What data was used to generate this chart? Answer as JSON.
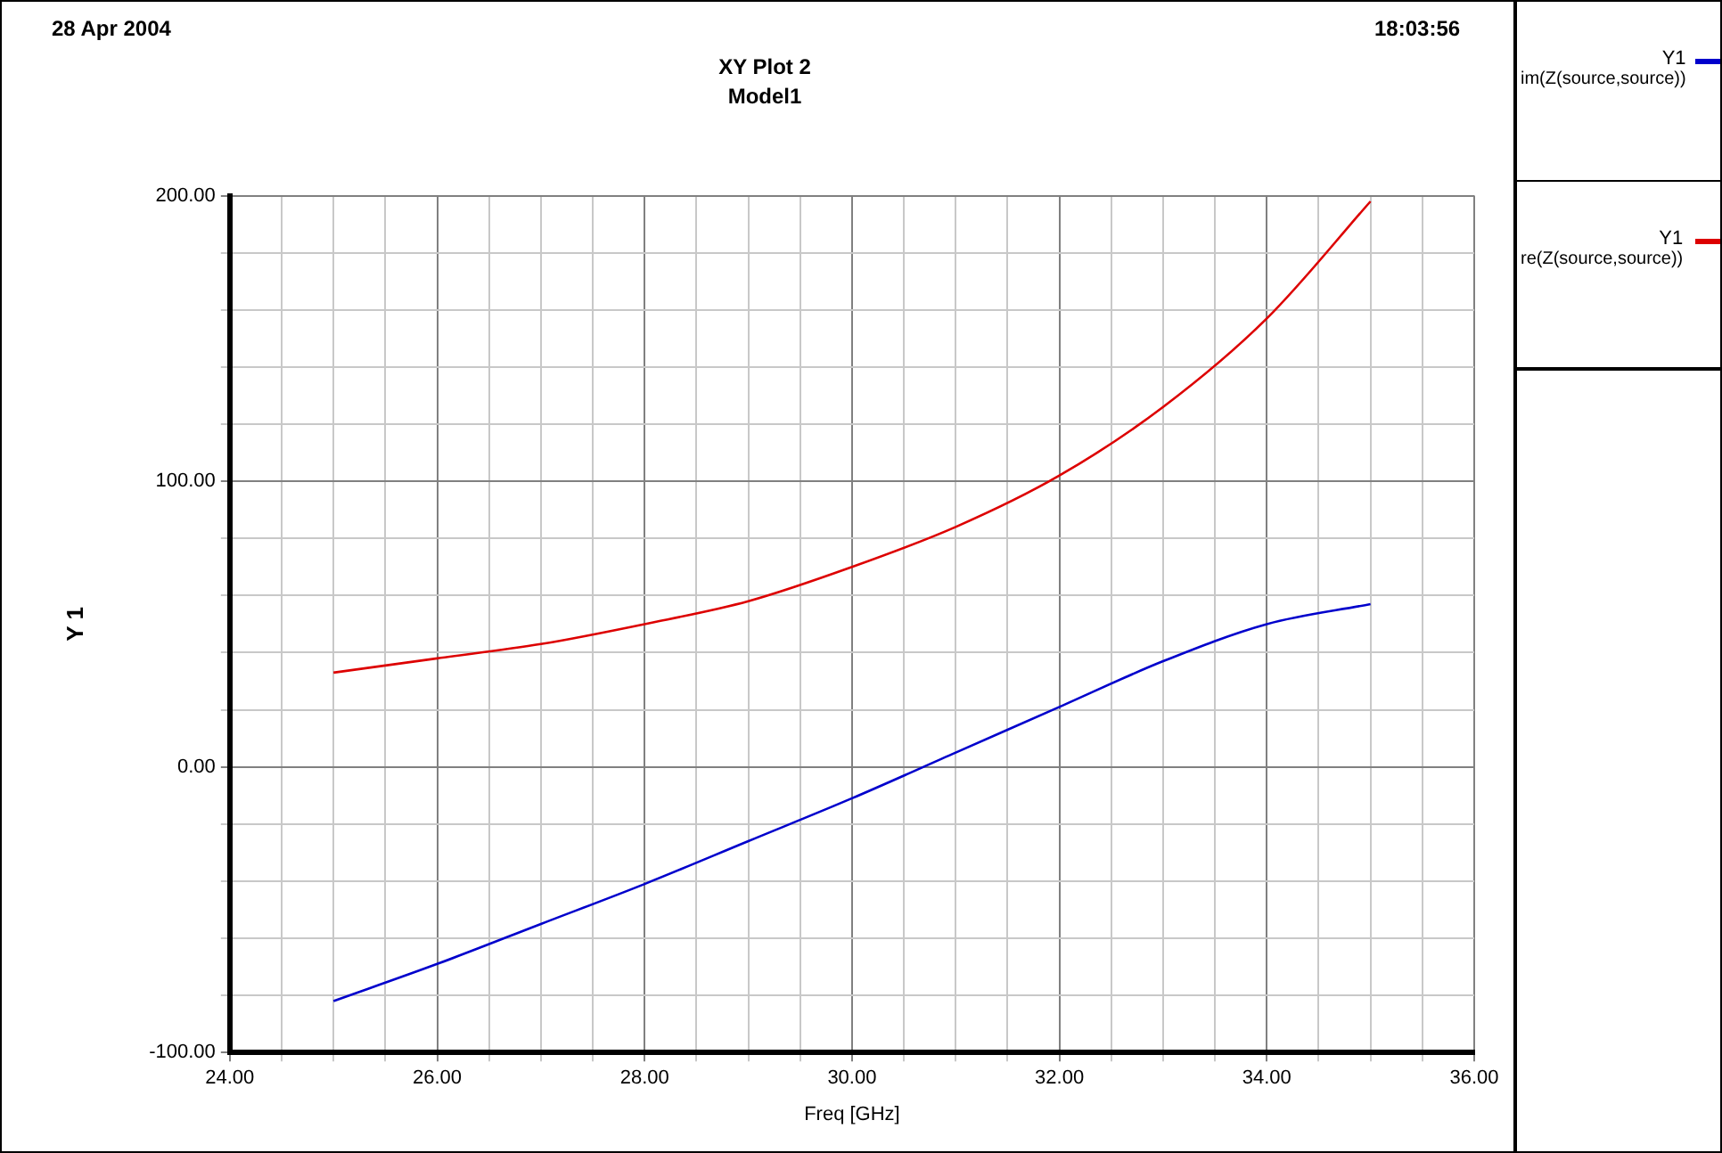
{
  "chart_data": {
    "type": "line",
    "title": "XY Plot 2",
    "subtitle": "Model1",
    "xlabel": "Freq [GHz]",
    "ylabel": "Y 1",
    "annotations": [
      "28 Apr 2004",
      "18:03:56"
    ],
    "x": [
      25,
      26,
      27,
      28,
      29,
      30,
      31,
      32,
      33,
      34,
      35
    ],
    "series": [
      {
        "name": "Y1\nim(Z(source,source))",
        "color": "#0000cc",
        "values": [
          -82,
          -69,
          -55,
          -41,
          -26,
          -11,
          5,
          21,
          37,
          50,
          57
        ]
      },
      {
        "name": "Y1\nre(Z(source,source))",
        "color": "#dd0000",
        "values": [
          33,
          38,
          43,
          50,
          58,
          70,
          84,
          102,
          126,
          157,
          198
        ]
      }
    ],
    "xlim": [
      24,
      36
    ],
    "xticks": [
      {
        "value": 24,
        "label": "24.00"
      },
      {
        "value": 24.5,
        "label": null
      },
      {
        "value": 25,
        "label": null
      },
      {
        "value": 25.5,
        "label": null
      },
      {
        "value": 26,
        "label": "26.00"
      },
      {
        "value": 26.5,
        "label": null
      },
      {
        "value": 27,
        "label": null
      },
      {
        "value": 27.5,
        "label": null
      },
      {
        "value": 28,
        "label": "28.00"
      },
      {
        "value": 28.5,
        "label": null
      },
      {
        "value": 29,
        "label": null
      },
      {
        "value": 29.5,
        "label": null
      },
      {
        "value": 30,
        "label": "30.00"
      },
      {
        "value": 30.5,
        "label": null
      },
      {
        "value": 31,
        "label": null
      },
      {
        "value": 31.5,
        "label": null
      },
      {
        "value": 32,
        "label": "32.00"
      },
      {
        "value": 32.5,
        "label": null
      },
      {
        "value": 33,
        "label": null
      },
      {
        "value": 33.5,
        "label": null
      },
      {
        "value": 34,
        "label": "34.00"
      },
      {
        "value": 34.5,
        "label": null
      },
      {
        "value": 35,
        "label": null
      },
      {
        "value": 35.5,
        "label": null
      },
      {
        "value": 36,
        "label": "36.00"
      }
    ],
    "ylim": [
      -100,
      200
    ],
    "yticks": [
      {
        "value": -100,
        "label": "-100.00"
      },
      {
        "value": -80,
        "label": null
      },
      {
        "value": -60,
        "label": null
      },
      {
        "value": -40,
        "label": null
      },
      {
        "value": -20,
        "label": null
      },
      {
        "value": 0,
        "label": "0.00"
      },
      {
        "value": 20,
        "label": null
      },
      {
        "value": 40,
        "label": null
      },
      {
        "value": 60,
        "label": null
      },
      {
        "value": 80,
        "label": null
      },
      {
        "value": 100,
        "label": "100.00"
      },
      {
        "value": 120,
        "label": null
      },
      {
        "value": 140,
        "label": null
      },
      {
        "value": 160,
        "label": null
      },
      {
        "value": 180,
        "label": null
      },
      {
        "value": 200,
        "label": "200.00"
      }
    ],
    "grid": true,
    "legend": "right",
    "marker": "none",
    "line_style": "solid"
  }
}
